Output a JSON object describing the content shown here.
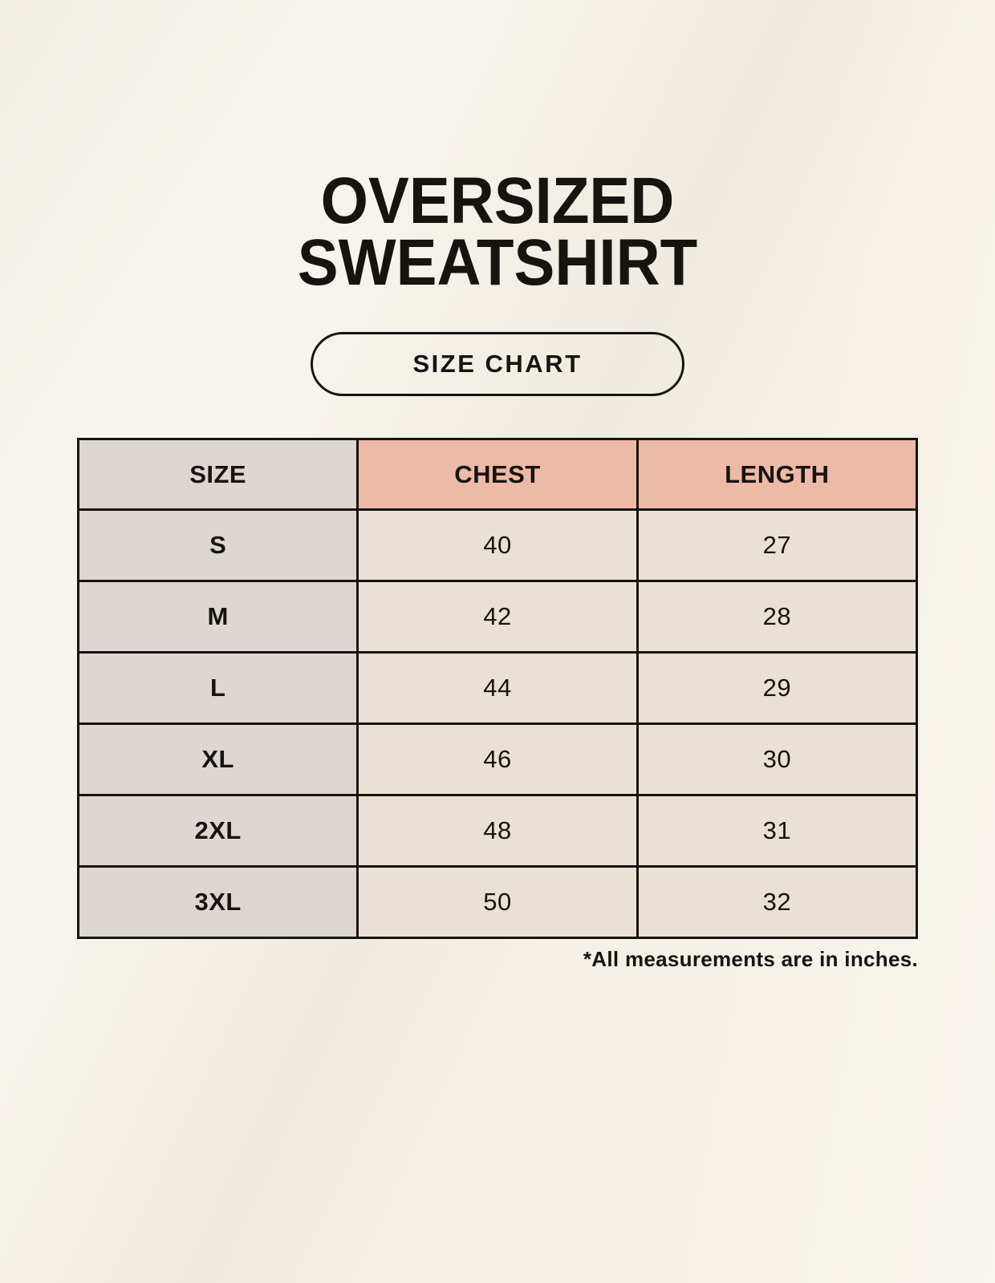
{
  "page": {
    "title_line1": "OVERSIZED",
    "title_line2": "SWEATSHIRT",
    "size_chart_button_label": "SIZE CHART",
    "footnote": "*All measurements are in inches."
  },
  "colors": {
    "background": "#f7f3ea",
    "size_column_bg": "#ddd6d1",
    "header_accent_bg": "#edbaa7",
    "data_cell_bg": "#e9e1d3",
    "border": "#17140f",
    "text": "#17140f"
  },
  "chart_data": {
    "type": "table",
    "title": "OVERSIZED SWEATSHIRT — SIZE CHART",
    "columns": [
      "SIZE",
      "CHEST",
      "LENGTH"
    ],
    "rows": [
      [
        "S",
        "40",
        "27"
      ],
      [
        "M",
        "42",
        "28"
      ],
      [
        "L",
        "44",
        "29"
      ],
      [
        "XL",
        "46",
        "30"
      ],
      [
        "2XL",
        "48",
        "31"
      ],
      [
        "3XL",
        "50",
        "32"
      ]
    ],
    "units_note": "*All measurements are in inches."
  }
}
